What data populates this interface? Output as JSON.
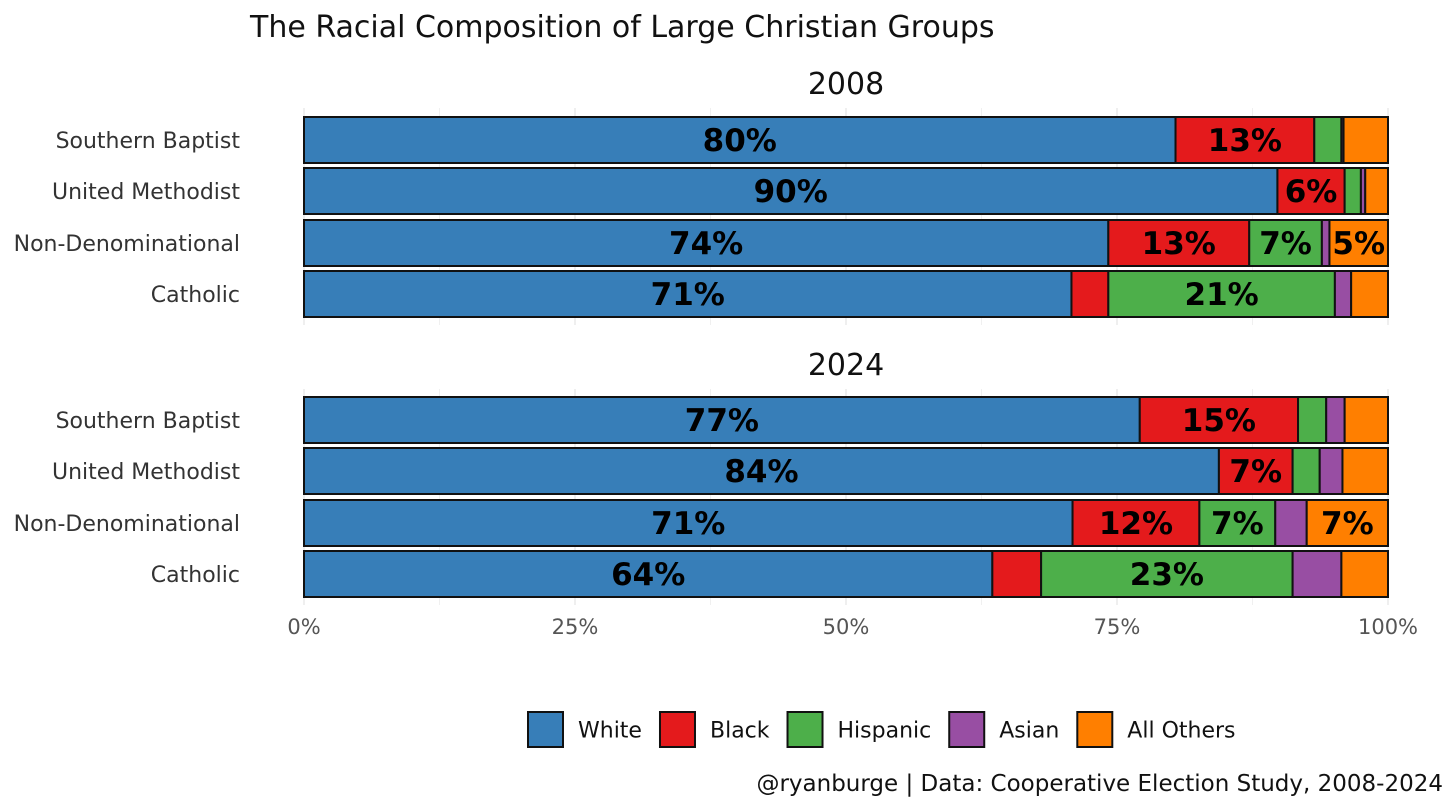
{
  "chart_data": {
    "type": "bar",
    "orientation": "horizontal",
    "stacked": "percent",
    "title": "The Racial Composition of Large Christian Groups",
    "caption": "@ryanburge | Data: Cooperative Election Study, 2008-2024",
    "xlim": [
      0,
      1
    ],
    "x_ticks": [
      "0%",
      "25%",
      "50%",
      "75%",
      "100%"
    ],
    "grid": true,
    "legend_position": "bottom",
    "categories": [
      "Southern Baptist",
      "United Methodist",
      "Non-Denominational",
      "Catholic"
    ],
    "series": [
      {
        "name": "White",
        "color": "#377EB8"
      },
      {
        "name": "Black",
        "color": "#E41A1C"
      },
      {
        "name": "Hispanic",
        "color": "#4DAF4A"
      },
      {
        "name": "Asian",
        "color": "#984EA3"
      },
      {
        "name": "All Others",
        "color": "#FF7F00"
      }
    ],
    "panels": [
      {
        "title": "2008",
        "rows": [
          {
            "category": "Southern Baptist",
            "values": [
              0.804,
              0.128,
              0.025,
              0.002,
              0.041
            ],
            "labels": [
              "80%",
              "13%",
              "",
              "",
              ""
            ]
          },
          {
            "category": "United Methodist",
            "values": [
              0.898,
              0.062,
              0.015,
              0.004,
              0.021
            ],
            "labels": [
              "90%",
              "6%",
              "",
              "",
              ""
            ]
          },
          {
            "category": "Non-Denominational",
            "values": [
              0.742,
              0.13,
              0.067,
              0.007,
              0.054
            ],
            "labels": [
              "74%",
              "13%",
              "7%",
              "",
              "5%"
            ]
          },
          {
            "category": "Catholic",
            "values": [
              0.708,
              0.034,
              0.209,
              0.015,
              0.034
            ],
            "labels": [
              "71%",
              "",
              "21%",
              "",
              ""
            ]
          }
        ]
      },
      {
        "title": "2024",
        "rows": [
          {
            "category": "Southern Baptist",
            "values": [
              0.771,
              0.146,
              0.026,
              0.017,
              0.04
            ],
            "labels": [
              "77%",
              "15%",
              "",
              "",
              ""
            ]
          },
          {
            "category": "United Methodist",
            "values": [
              0.844,
              0.068,
              0.025,
              0.021,
              0.042
            ],
            "labels": [
              "84%",
              "7%",
              "",
              "",
              ""
            ]
          },
          {
            "category": "Non-Denominational",
            "values": [
              0.709,
              0.117,
              0.07,
              0.029,
              0.075
            ],
            "labels": [
              "71%",
              "12%",
              "7%",
              "",
              "7%"
            ]
          },
          {
            "category": "Catholic",
            "values": [
              0.635,
              0.045,
              0.232,
              0.045,
              0.043
            ],
            "labels": [
              "64%",
              "",
              "23%",
              "",
              ""
            ]
          }
        ]
      }
    ]
  }
}
